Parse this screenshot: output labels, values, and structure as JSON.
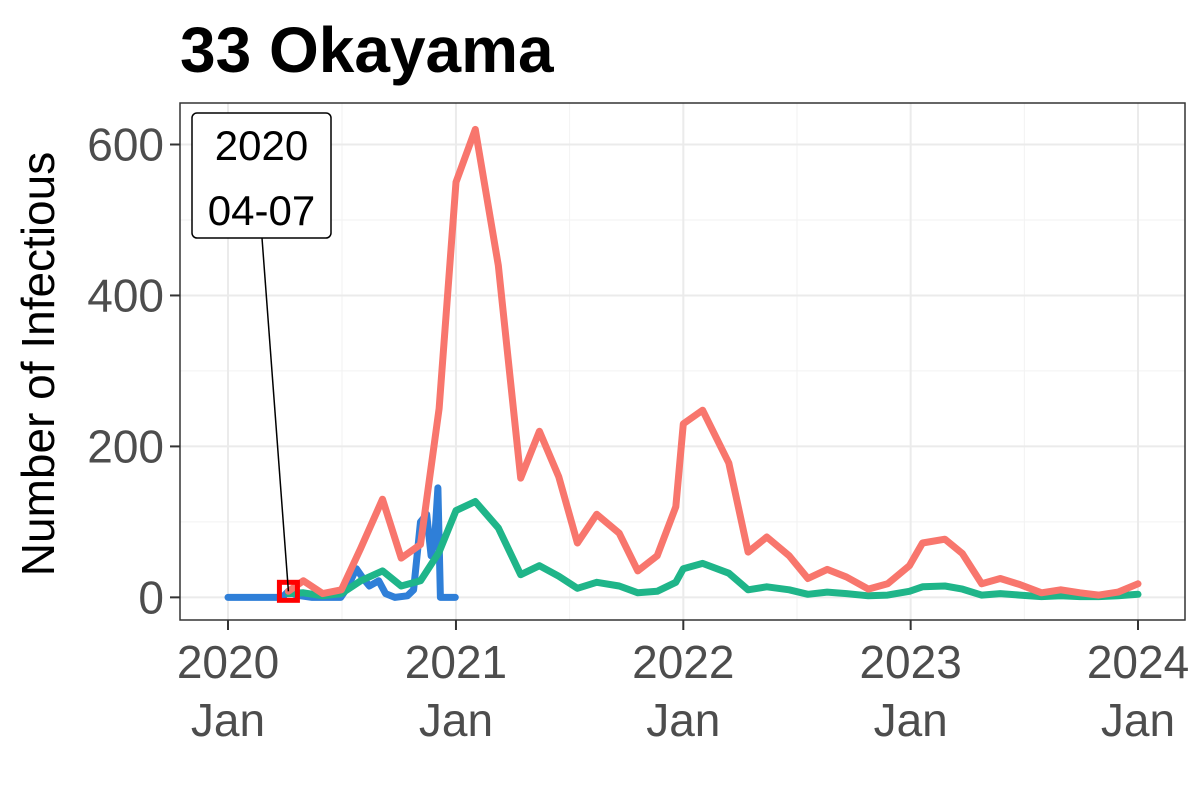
{
  "chart_data": {
    "type": "line",
    "title": "33 Okayama",
    "xlabel": "",
    "ylabel": "Number of Infectious",
    "xlim": [
      "2020-01-01",
      "2024-01-01"
    ],
    "ylim": [
      -30,
      655
    ],
    "grid": true,
    "legend": "none",
    "x_ticks": [
      {
        "date": "2020-01-01",
        "year": "2020",
        "month": "Jan"
      },
      {
        "date": "2021-01-01",
        "year": "2021",
        "month": "Jan"
      },
      {
        "date": "2022-01-01",
        "year": "2022",
        "month": "Jan"
      },
      {
        "date": "2023-01-01",
        "year": "2023",
        "month": "Jan"
      },
      {
        "date": "2024-01-01",
        "year": "2024",
        "month": "Jan"
      }
    ],
    "y_ticks": [
      0,
      200,
      400,
      600
    ],
    "series": [
      {
        "color": "#F8766D",
        "points": [
          [
            "2020-04-07",
            8
          ],
          [
            "2020-05-01",
            22
          ],
          [
            "2020-06-01",
            5
          ],
          [
            "2020-07-01",
            10
          ],
          [
            "2020-08-01",
            65
          ],
          [
            "2020-09-05",
            130
          ],
          [
            "2020-10-05",
            52
          ],
          [
            "2020-11-05",
            70
          ],
          [
            "2020-12-05",
            250
          ],
          [
            "2021-01-01",
            550
          ],
          [
            "2021-02-01",
            620
          ],
          [
            "2021-03-10",
            440
          ],
          [
            "2021-04-15",
            158
          ],
          [
            "2021-05-15",
            220
          ],
          [
            "2021-06-15",
            160
          ],
          [
            "2021-07-15",
            72
          ],
          [
            "2021-08-15",
            110
          ],
          [
            "2021-09-20",
            85
          ],
          [
            "2021-10-20",
            35
          ],
          [
            "2021-11-20",
            55
          ],
          [
            "2021-12-20",
            120
          ],
          [
            "2022-01-01",
            230
          ],
          [
            "2022-02-01",
            248
          ],
          [
            "2022-03-15",
            178
          ],
          [
            "2022-04-15",
            60
          ],
          [
            "2022-05-15",
            80
          ],
          [
            "2022-06-20",
            55
          ],
          [
            "2022-07-20",
            25
          ],
          [
            "2022-08-20",
            37
          ],
          [
            "2022-09-20",
            27
          ],
          [
            "2022-10-25",
            11
          ],
          [
            "2022-11-25",
            18
          ],
          [
            "2022-12-30",
            42
          ],
          [
            "2023-01-20",
            72
          ],
          [
            "2023-02-25",
            77
          ],
          [
            "2023-03-25",
            58
          ],
          [
            "2023-04-25",
            18
          ],
          [
            "2023-05-25",
            25
          ],
          [
            "2023-06-25",
            17
          ],
          [
            "2023-07-30",
            6
          ],
          [
            "2023-08-30",
            10
          ],
          [
            "2023-09-30",
            6
          ],
          [
            "2023-10-30",
            3
          ],
          [
            "2023-11-30",
            7
          ],
          [
            "2024-01-01",
            18
          ]
        ]
      },
      {
        "color": "#1FB589",
        "points": [
          [
            "2020-04-07",
            5
          ],
          [
            "2020-05-01",
            6
          ],
          [
            "2020-06-01",
            2
          ],
          [
            "2020-07-01",
            5
          ],
          [
            "2020-08-01",
            22
          ],
          [
            "2020-09-05",
            35
          ],
          [
            "2020-10-05",
            15
          ],
          [
            "2020-11-05",
            22
          ],
          [
            "2020-12-05",
            60
          ],
          [
            "2021-01-01",
            115
          ],
          [
            "2021-02-01",
            127
          ],
          [
            "2021-03-10",
            92
          ],
          [
            "2021-04-15",
            30
          ],
          [
            "2021-05-15",
            42
          ],
          [
            "2021-06-15",
            28
          ],
          [
            "2021-07-15",
            12
          ],
          [
            "2021-08-15",
            20
          ],
          [
            "2021-09-20",
            15
          ],
          [
            "2021-10-20",
            6
          ],
          [
            "2021-11-20",
            8
          ],
          [
            "2021-12-20",
            20
          ],
          [
            "2022-01-01",
            38
          ],
          [
            "2022-02-01",
            45
          ],
          [
            "2022-03-15",
            32
          ],
          [
            "2022-04-15",
            10
          ],
          [
            "2022-05-15",
            14
          ],
          [
            "2022-06-20",
            10
          ],
          [
            "2022-07-20",
            4
          ],
          [
            "2022-08-20",
            7
          ],
          [
            "2022-09-20",
            5
          ],
          [
            "2022-10-25",
            2
          ],
          [
            "2022-11-25",
            3
          ],
          [
            "2022-12-30",
            8
          ],
          [
            "2023-01-20",
            14
          ],
          [
            "2023-02-25",
            15
          ],
          [
            "2023-03-25",
            11
          ],
          [
            "2023-04-25",
            3
          ],
          [
            "2023-05-25",
            5
          ],
          [
            "2023-06-25",
            3
          ],
          [
            "2023-07-30",
            1
          ],
          [
            "2023-08-30",
            2
          ],
          [
            "2023-09-30",
            1
          ],
          [
            "2023-10-30",
            1
          ],
          [
            "2023-11-30",
            2
          ],
          [
            "2024-01-01",
            4
          ]
        ]
      },
      {
        "color": "#2F7FD8",
        "points": [
          [
            "2020-01-01",
            0
          ],
          [
            "2020-03-28",
            0
          ],
          [
            "2020-04-07",
            8
          ],
          [
            "2020-04-20",
            3
          ],
          [
            "2020-05-15",
            0
          ],
          [
            "2020-06-30",
            0
          ],
          [
            "2020-07-10",
            12
          ],
          [
            "2020-07-25",
            38
          ],
          [
            "2020-08-05",
            25
          ],
          [
            "2020-08-15",
            15
          ],
          [
            "2020-08-30",
            22
          ],
          [
            "2020-09-10",
            5
          ],
          [
            "2020-09-25",
            0
          ],
          [
            "2020-10-15",
            2
          ],
          [
            "2020-10-25",
            10
          ],
          [
            "2020-11-05",
            100
          ],
          [
            "2020-11-15",
            110
          ],
          [
            "2020-11-22",
            55
          ],
          [
            "2020-11-28",
            80
          ],
          [
            "2020-12-03",
            145
          ],
          [
            "2020-12-07",
            0
          ],
          [
            "2020-12-31",
            0
          ]
        ]
      }
    ],
    "highlight_point": {
      "date": "2020-04-07",
      "value": 8,
      "color": "#FF0000"
    },
    "annotation": {
      "line1": "2020",
      "line2": "04-07"
    }
  }
}
